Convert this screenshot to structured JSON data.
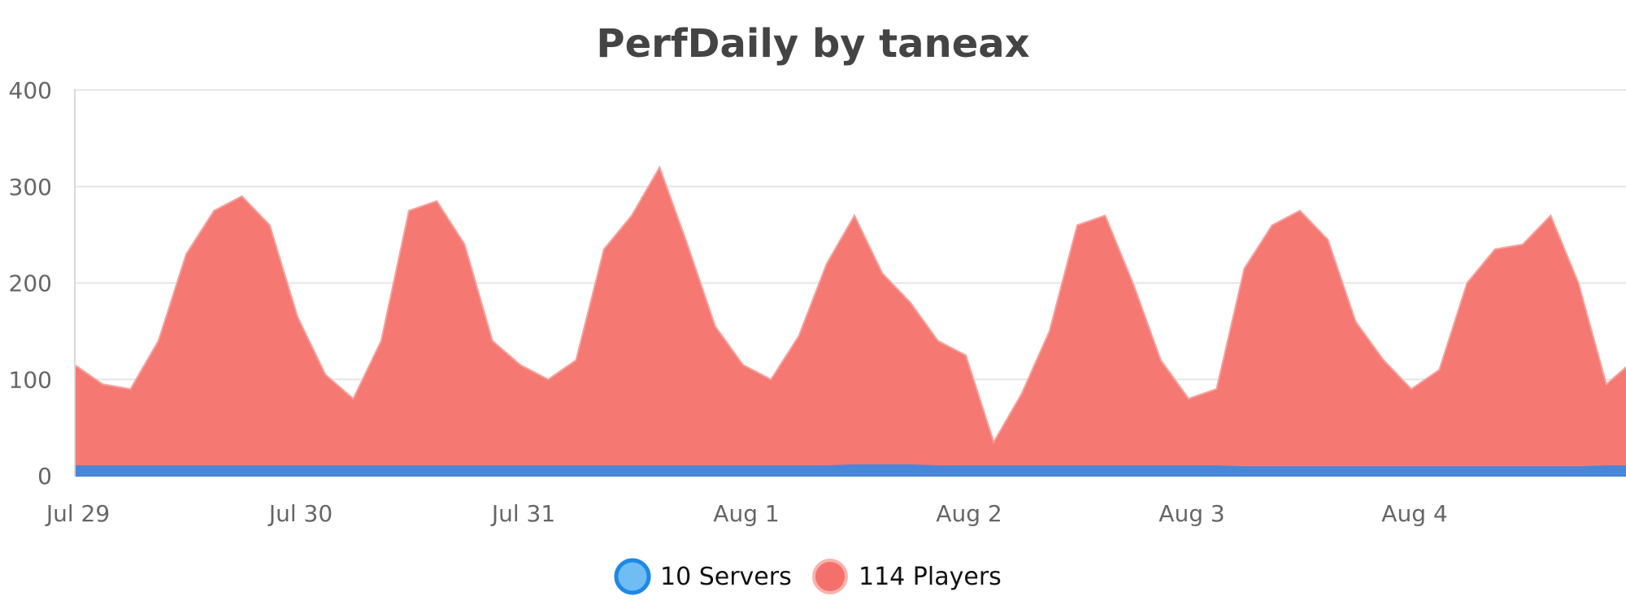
{
  "chart_data": {
    "type": "area",
    "title": "PerfDaily by taneax",
    "xlabel": "",
    "ylabel": "",
    "ylim": [
      0,
      400
    ],
    "y_ticks": [
      "0",
      "100",
      "200",
      "300",
      "400"
    ],
    "x_ticks": [
      {
        "label": "Jul 29",
        "date": "2024-07-29"
      },
      {
        "label": "Jul 30",
        "date": "2024-07-30"
      },
      {
        "label": "Jul 31",
        "date": "2024-07-31"
      },
      {
        "label": "Aug 1",
        "date": "2024-08-01"
      },
      {
        "label": "Aug 2",
        "date": "2024-08-02"
      },
      {
        "label": "Aug 3",
        "date": "2024-08-03"
      },
      {
        "label": "Aug 4",
        "date": "2024-08-04"
      }
    ],
    "x": [
      "2024-07-29 00:00",
      "2024-07-29 03:00",
      "2024-07-29 06:00",
      "2024-07-29 09:00",
      "2024-07-29 12:00",
      "2024-07-29 15:00",
      "2024-07-29 18:00",
      "2024-07-29 21:00",
      "2024-07-30 00:00",
      "2024-07-30 03:00",
      "2024-07-30 06:00",
      "2024-07-30 09:00",
      "2024-07-30 12:00",
      "2024-07-30 15:00",
      "2024-07-30 18:00",
      "2024-07-30 21:00",
      "2024-07-31 00:00",
      "2024-07-31 03:00",
      "2024-07-31 06:00",
      "2024-07-31 09:00",
      "2024-07-31 12:00",
      "2024-07-31 15:00",
      "2024-07-31 18:00",
      "2024-07-31 21:00",
      "2024-08-01 00:00",
      "2024-08-01 03:00",
      "2024-08-01 06:00",
      "2024-08-01 09:00",
      "2024-08-01 12:00",
      "2024-08-01 15:00",
      "2024-08-01 18:00",
      "2024-08-01 21:00",
      "2024-08-02 00:00",
      "2024-08-02 03:00",
      "2024-08-02 06:00",
      "2024-08-02 09:00",
      "2024-08-02 12:00",
      "2024-08-02 15:00",
      "2024-08-02 18:00",
      "2024-08-02 21:00",
      "2024-08-03 00:00",
      "2024-08-03 03:00",
      "2024-08-03 06:00",
      "2024-08-03 09:00",
      "2024-08-03 12:00",
      "2024-08-03 15:00",
      "2024-08-03 18:00",
      "2024-08-03 21:00",
      "2024-08-04 00:00",
      "2024-08-04 03:00",
      "2024-08-04 06:00",
      "2024-08-04 09:00",
      "2024-08-04 12:00",
      "2024-08-04 15:00",
      "2024-08-04 18:00",
      "2024-08-04 21:00",
      "2024-08-05 00:00"
    ],
    "series": [
      {
        "name": "10 Servers",
        "color": "#4a86d8",
        "marker_color": "#6fbdf3",
        "values": [
          10,
          10,
          10,
          10,
          10,
          10,
          10,
          10,
          10,
          10,
          10,
          10,
          10,
          10,
          10,
          10,
          10,
          10,
          10,
          10,
          10,
          10,
          10,
          10,
          10,
          10,
          10,
          10,
          11,
          11,
          11,
          10,
          10,
          10,
          10,
          10,
          10,
          10,
          10,
          10,
          10,
          10,
          9,
          9,
          9,
          9,
          9,
          9,
          9,
          9,
          9,
          9,
          9,
          9,
          9,
          10,
          10
        ]
      },
      {
        "name": "114 Players",
        "color": "#f4716b",
        "marker_color": "#f4716b",
        "values": [
          115,
          95,
          90,
          140,
          230,
          275,
          290,
          260,
          165,
          105,
          80,
          140,
          275,
          285,
          240,
          140,
          115,
          100,
          120,
          235,
          270,
          320,
          240,
          155,
          115,
          100,
          145,
          220,
          270,
          210,
          180,
          140,
          125,
          35,
          85,
          150,
          260,
          270,
          200,
          120,
          80,
          90,
          215,
          260,
          275,
          245,
          160,
          120,
          90,
          110,
          200,
          235,
          240,
          270,
          200,
          95,
          120
        ]
      }
    ],
    "legend": "bottom-center",
    "grid": true
  }
}
